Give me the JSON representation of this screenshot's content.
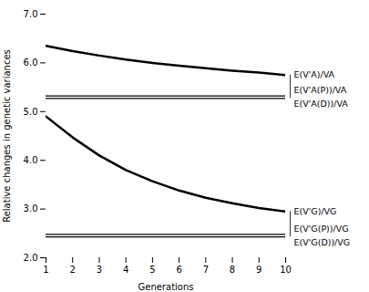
{
  "chart_data": {
    "type": "line",
    "title": "",
    "xlabel": "Generations",
    "ylabel": "Relative changes in genetic variances",
    "x": [
      1,
      2,
      3,
      4,
      5,
      6,
      7,
      8,
      9,
      10
    ],
    "series": [
      {
        "name": "E(V'A)/VA",
        "color": "black",
        "values": [
          6.35,
          6.24,
          6.15,
          6.07,
          6.0,
          5.94,
          5.89,
          5.84,
          5.8,
          5.75
        ],
        "hlines": [
          {
            "name": "E(V'A(P))/VA",
            "value": 5.32,
            "color": "black"
          },
          {
            "name": "E(V'A(D))/VA",
            "value": 5.27,
            "color": "black"
          }
        ]
      },
      {
        "name": "E(V'G)/VG",
        "color": "black",
        "values": [
          4.9,
          4.47,
          4.1,
          3.8,
          3.57,
          3.38,
          3.23,
          3.12,
          3.02,
          2.95
        ],
        "hlines": [
          {
            "name": "E(V'G(P))/VG",
            "value": 2.48,
            "color": "black"
          },
          {
            "name": "E(V'G(D))/VG",
            "value": 2.43,
            "color": "black"
          }
        ]
      }
    ],
    "xlim": [
      1,
      10
    ],
    "ylim": [
      2,
      7
    ],
    "xticks": [
      1,
      2,
      3,
      4,
      5,
      6,
      7,
      8,
      9,
      10
    ],
    "yticks": [
      2,
      3,
      4,
      5,
      6,
      7
    ],
    "grid": false
  }
}
